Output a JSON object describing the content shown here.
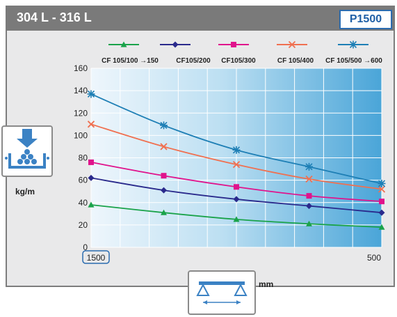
{
  "header": {
    "title": "304 L - 316 L",
    "badge": "P1500"
  },
  "icons": {
    "left": "weight-load-icon",
    "bottom": "span-supports-icon"
  },
  "colors": {
    "header_bg": "#7a7a7a",
    "badge_border": "#2b6cb0",
    "plot_bg_light": "#eaf4fb",
    "plot_bg_dark": "#4ba6d8"
  },
  "chart_data": {
    "type": "line",
    "ylabel": "kg/m",
    "xlabel": "mm",
    "xlim": [
      1500,
      500
    ],
    "ylim": [
      0,
      160
    ],
    "yticks": [
      0,
      20,
      40,
      60,
      80,
      100,
      120,
      140,
      160
    ],
    "xtick_labels": [
      "1500",
      "500"
    ],
    "grid": true,
    "legend_position": "top",
    "x": [
      1500,
      1250,
      1000,
      750,
      500
    ],
    "series": [
      {
        "name": "CF 105/100 →150",
        "marker": "triangle",
        "color": "#1aa34a",
        "values": [
          38,
          31,
          25,
          21,
          18
        ]
      },
      {
        "name": "CF105/200",
        "marker": "diamond",
        "color": "#2a2a8c",
        "values": [
          62,
          51,
          43,
          37,
          31
        ]
      },
      {
        "name": "CF105/300",
        "marker": "square",
        "color": "#e0138c",
        "values": [
          76,
          64,
          54,
          46,
          41
        ]
      },
      {
        "name": "CF 105/400",
        "marker": "x",
        "color": "#f07050",
        "values": [
          110,
          90,
          74,
          61,
          52
        ]
      },
      {
        "name": "CF 105/500 →600",
        "marker": "star",
        "color": "#1e7fb5",
        "values": [
          137,
          109,
          87,
          72,
          57
        ]
      }
    ]
  }
}
